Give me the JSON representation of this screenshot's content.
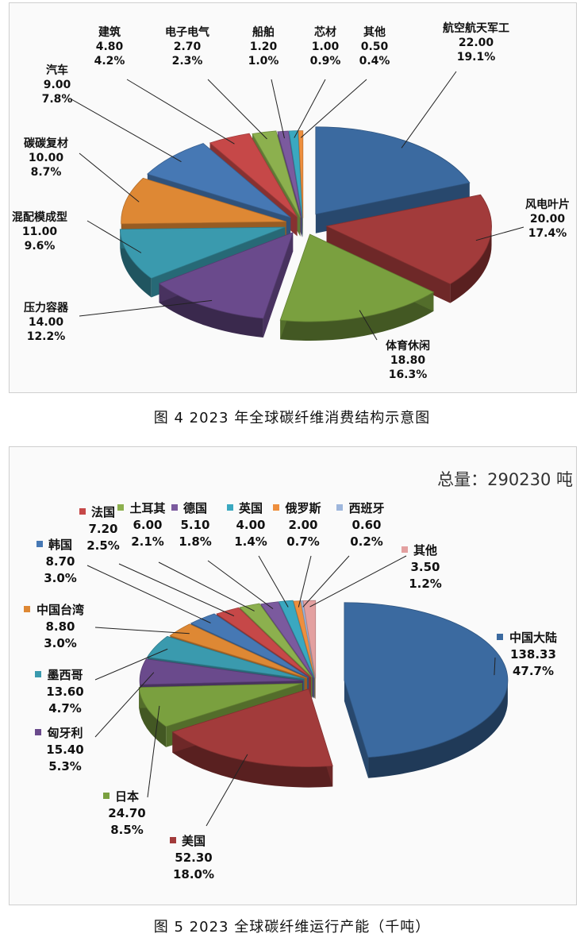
{
  "captions": {
    "fig4": "图 4  2023 年全球碳纤维消费结构示意图",
    "fig5": "图 5  2023 全球碳纤维运行产能（千吨）"
  },
  "chart_data": [
    {
      "type": "pie",
      "style": "3d-exploded",
      "title": "",
      "slices": [
        {
          "label": "航空航天军工",
          "value": 22.0,
          "percent": "19.1%",
          "color": "#3b6aa0"
        },
        {
          "label": "风电叶片",
          "value": 20.0,
          "percent": "17.4%",
          "color": "#a23b3b"
        },
        {
          "label": "体育休闲",
          "value": 18.8,
          "percent": "16.3%",
          "color": "#7aa03f"
        },
        {
          "label": "压力容器",
          "value": 14.0,
          "percent": "12.2%",
          "color": "#6a4a8c"
        },
        {
          "label": "混配模成型",
          "value": 11.0,
          "percent": "9.6%",
          "color": "#3a9aae"
        },
        {
          "label": "碳碳复材",
          "value": 10.0,
          "percent": "8.7%",
          "color": "#de8834"
        },
        {
          "label": "汽车",
          "value": 9.0,
          "percent": "7.8%",
          "color": "#4678b4"
        },
        {
          "label": "建筑",
          "value": 4.8,
          "percent": "4.2%",
          "color": "#c64848"
        },
        {
          "label": "电子电气",
          "value": 2.7,
          "percent": "2.3%",
          "color": "#8cb04e"
        },
        {
          "label": "船舶",
          "value": 1.2,
          "percent": "1.0%",
          "color": "#7b5a9e"
        },
        {
          "label": "芯材",
          "value": 1.0,
          "percent": "0.9%",
          "color": "#3aa8c0"
        },
        {
          "label": "其他",
          "value": 0.5,
          "percent": "0.4%",
          "color": "#ee8f3e"
        }
      ]
    },
    {
      "type": "pie",
      "style": "3d-exploded",
      "title": "",
      "total_label": "总量：290230 吨",
      "slices": [
        {
          "label": "中国大陆",
          "value": 138.33,
          "percent": "47.7%",
          "color": "#3b6aa0"
        },
        {
          "label": "美国",
          "value": 52.3,
          "percent": "18.0%",
          "color": "#a23b3b"
        },
        {
          "label": "日本",
          "value": 24.7,
          "percent": "8.5%",
          "color": "#7aa03f"
        },
        {
          "label": "匈牙利",
          "value": 15.4,
          "percent": "5.3%",
          "color": "#6a4a8c"
        },
        {
          "label": "墨西哥",
          "value": 13.6,
          "percent": "4.7%",
          "color": "#3a9aae"
        },
        {
          "label": "中国台湾",
          "value": 8.8,
          "percent": "3.0%",
          "color": "#de8834"
        },
        {
          "label": "韩国",
          "value": 8.7,
          "percent": "3.0%",
          "color": "#4678b4"
        },
        {
          "label": "法国",
          "value": 7.2,
          "percent": "2.5%",
          "color": "#c64848"
        },
        {
          "label": "土耳其",
          "value": 6.0,
          "percent": "2.1%",
          "color": "#8cb04e"
        },
        {
          "label": "德国",
          "value": 5.1,
          "percent": "1.8%",
          "color": "#7b5a9e"
        },
        {
          "label": "英国",
          "value": 4.0,
          "percent": "1.4%",
          "color": "#3aa8c0"
        },
        {
          "label": "俄罗斯",
          "value": 2.0,
          "percent": "0.7%",
          "color": "#ee8f3e"
        },
        {
          "label": "西班牙",
          "value": 0.6,
          "percent": "0.2%",
          "color": "#9eb6dc"
        },
        {
          "label": "其他",
          "value": 3.5,
          "percent": "1.2%",
          "color": "#e3a0a0"
        }
      ]
    }
  ]
}
